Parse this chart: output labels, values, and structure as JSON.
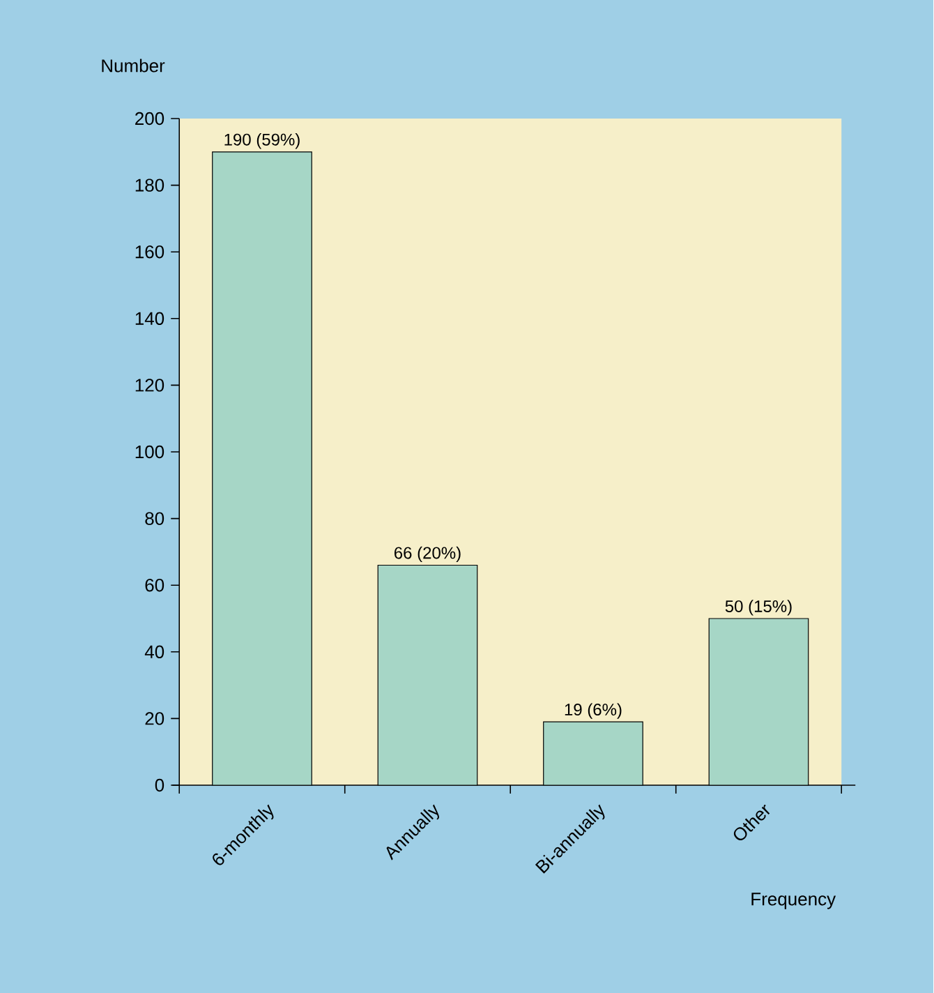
{
  "chart_data": {
    "type": "bar",
    "xlabel": "Frequency",
    "ylabel": "Number",
    "categories": [
      "6-monthly",
      "Annually",
      "Bi-annually",
      "Other"
    ],
    "values": [
      190,
      66,
      19,
      50
    ],
    "value_labels": [
      "190 (59%)",
      "66 (20%)",
      "19 (6%)",
      "50 (15%)"
    ],
    "color": "#a6d6c6",
    "ylim": [
      0,
      200
    ],
    "yticks": [
      0,
      20,
      40,
      60,
      80,
      100,
      120,
      140,
      160,
      180,
      200
    ]
  }
}
